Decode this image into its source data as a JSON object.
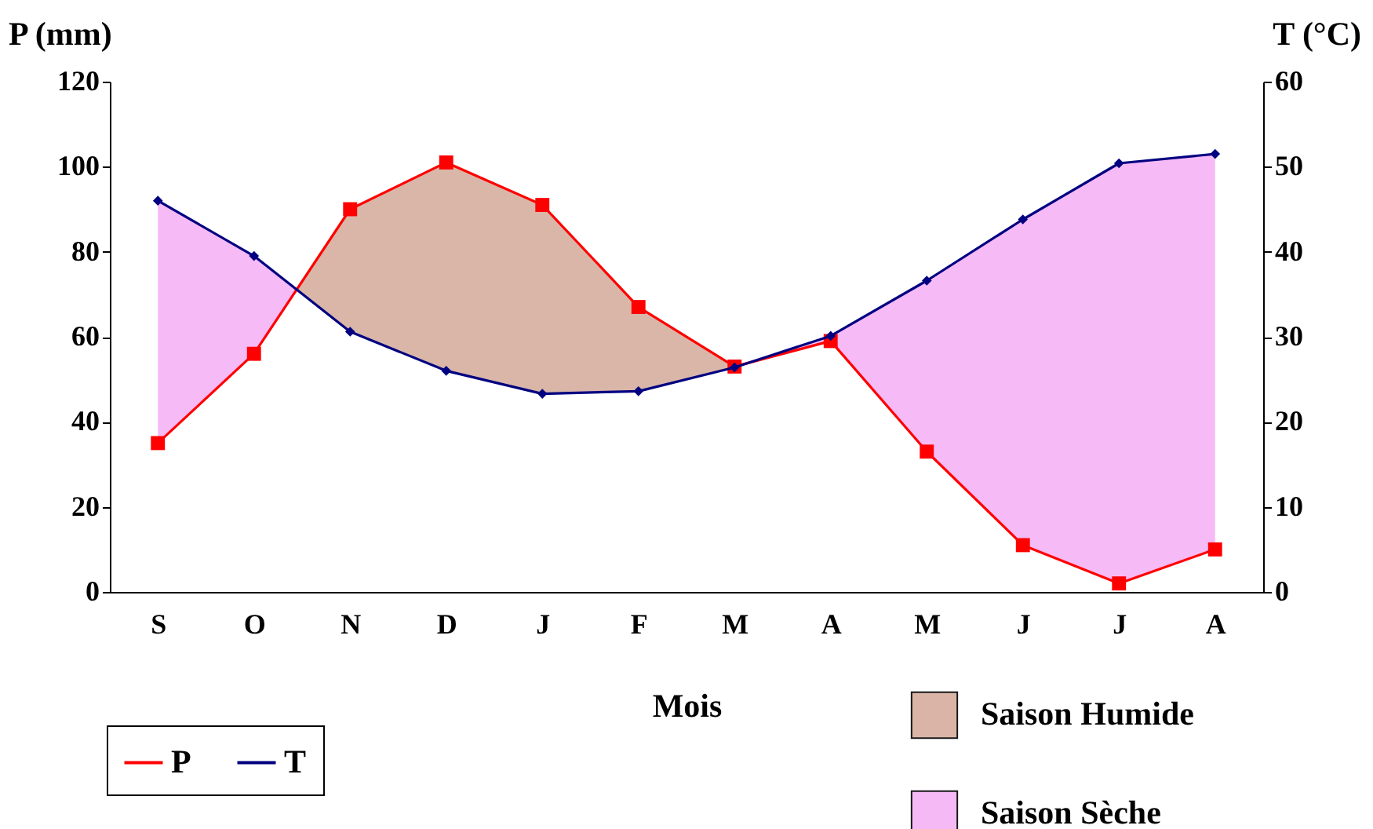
{
  "chart_data": {
    "type": "line",
    "xlabel": "Mois",
    "ylabel": "P (mm)",
    "y2label": "T (°C)",
    "categories": [
      "S",
      "O",
      "N",
      "D",
      "J",
      "F",
      "M",
      "A",
      "M",
      "J",
      "J",
      "A"
    ],
    "series": [
      {
        "name": "P",
        "color": "#ff0000",
        "marker": "square",
        "values": [
          35,
          56,
          90,
          101,
          91,
          67,
          53,
          59,
          33,
          11,
          2,
          10
        ]
      },
      {
        "name": "T",
        "color": "#000080",
        "marker": "diamond",
        "axis": "y2",
        "values": [
          46,
          39.5,
          30.6,
          26,
          23.3,
          23.6,
          26.4,
          30.1,
          36.6,
          43.8,
          50.4,
          51.5
        ]
      }
    ],
    "annotations": [
      "Saison Humide",
      "Saison Sèche"
    ],
    "ylim": [
      0,
      120
    ],
    "yticks": [
      0,
      20,
      40,
      60,
      80,
      100,
      120
    ],
    "y2lim": [
      0,
      60
    ],
    "y2ticks": [
      0,
      10,
      20,
      30,
      40,
      50,
      60
    ],
    "grid": false,
    "legend": "bottom"
  }
}
